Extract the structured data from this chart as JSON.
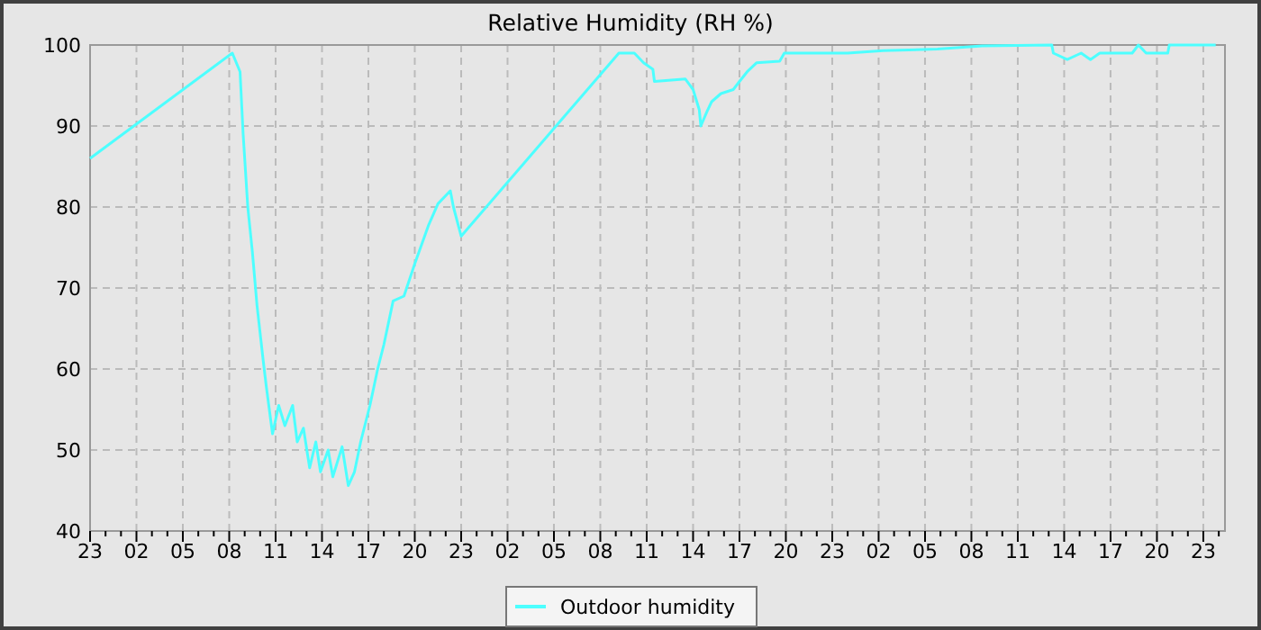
{
  "chart_data": {
    "type": "line",
    "title": "Relative Humidity (RH %)",
    "series": [
      {
        "name": "Outdoor humidity",
        "color": "#4dffff",
        "x": [
          "--01-01T23:00",
          "--01-02T08:12",
          "--01-02T08:42",
          "--01-02T08:54",
          "--01-02T09:12",
          "--01-02T09:30",
          "--01-02T09:48",
          "--01-02T10:12",
          "--01-02T10:24",
          "--01-02T10:48",
          "--01-02T11:12",
          "--01-02T11:36",
          "--01-02T12:06",
          "--01-02T12:24",
          "--01-02T12:48",
          "--01-02T13:12",
          "--01-02T13:36",
          "--01-02T13:54",
          "--01-02T14:24",
          "--01-02T14:42",
          "--01-02T15:18",
          "--01-02T15:42",
          "--01-02T16:06",
          "--01-02T16:30",
          "--01-02T17:06",
          "--01-02T17:36",
          "--01-02T18:00",
          "--01-02T18:36",
          "--01-02T19:18",
          "--01-02T20:00",
          "--01-02T20:54",
          "--01-02T21:30",
          "--01-02T22:18",
          "--01-02T22:30",
          "--01-02T23:00",
          "--01-03T09:12",
          "--01-03T10:12",
          "--01-03T10:48",
          "--01-03T11:24",
          "--01-03T11:30",
          "--01-03T13:30",
          "--01-03T14:00",
          "--01-03T14:24",
          "--01-03T14:30",
          "--01-03T14:54",
          "--01-03T15:12",
          "--01-03T15:48",
          "--01-03T16:36",
          "--01-03T17:00",
          "--01-03T17:30",
          "--01-03T18:06",
          "--01-03T19:36",
          "--01-03T19:54",
          "--01-04T00:00",
          "--01-04T02:18",
          "--01-04T05:48",
          "--01-04T08:42",
          "--01-04T13:12",
          "--01-04T13:18",
          "--01-04T14:12",
          "--01-04T15:06",
          "--01-04T15:42",
          "--01-04T16:18",
          "--01-04T18:24",
          "--01-04T18:48",
          "--01-04T19:18",
          "--01-04T20:42",
          "--01-04T20:48",
          "--01-04T23:48"
        ],
        "values": [
          86,
          99,
          96.7,
          89,
          80,
          74.4,
          67.8,
          61,
          57.8,
          52,
          55.5,
          53,
          55.5,
          51,
          52.7,
          47.8,
          51,
          47.3,
          50,
          46.7,
          50.4,
          45.6,
          47.3,
          51,
          55.5,
          60,
          63,
          68.4,
          69,
          73,
          77.8,
          80.4,
          82,
          80,
          76.4,
          99,
          99,
          97.8,
          97,
          95.5,
          95.8,
          94.5,
          92,
          90,
          91.8,
          93,
          94,
          94.5,
          95.5,
          96.7,
          97.8,
          98,
          99,
          99,
          99.3,
          99.5,
          99.9,
          100,
          99,
          98.2,
          99,
          98.2,
          99,
          99,
          100,
          99,
          99,
          100,
          100
        ]
      }
    ],
    "xlim": [
      "--01-01T23:00",
      "--01-05T00:24"
    ],
    "ylim": [
      40,
      100
    ],
    "yticks": [
      40,
      50,
      60,
      70,
      80,
      90,
      100
    ],
    "xticks": [
      {
        "value": "--01-01T23:00",
        "label": "23"
      },
      {
        "value": "--01-02T00:00",
        "label": null
      },
      {
        "value": "--01-02T01:00",
        "label": null
      },
      {
        "value": "--01-02T02:00",
        "label": "02"
      },
      {
        "value": "--01-02T03:00",
        "label": null
      },
      {
        "value": "--01-02T04:00",
        "label": null
      },
      {
        "value": "--01-02T05:00",
        "label": "05"
      },
      {
        "value": "--01-02T06:00",
        "label": null
      },
      {
        "value": "--01-02T07:00",
        "label": null
      },
      {
        "value": "--01-02T08:00",
        "label": "08"
      },
      {
        "value": "--01-02T09:00",
        "label": null
      },
      {
        "value": "--01-02T10:00",
        "label": null
      },
      {
        "value": "--01-02T11:00",
        "label": "11"
      },
      {
        "value": "--01-02T12:00",
        "label": null
      },
      {
        "value": "--01-02T13:00",
        "label": null
      },
      {
        "value": "--01-02T14:00",
        "label": "14"
      },
      {
        "value": "--01-02T15:00",
        "label": null
      },
      {
        "value": "--01-02T16:00",
        "label": null
      },
      {
        "value": "--01-02T17:00",
        "label": "17"
      },
      {
        "value": "--01-02T18:00",
        "label": null
      },
      {
        "value": "--01-02T19:00",
        "label": null
      },
      {
        "value": "--01-02T20:00",
        "label": "20"
      },
      {
        "value": "--01-02T21:00",
        "label": null
      },
      {
        "value": "--01-02T22:00",
        "label": null
      },
      {
        "value": "--01-02T23:00",
        "label": "23"
      },
      {
        "value": "--01-03T00:00",
        "label": null
      },
      {
        "value": "--01-03T01:00",
        "label": null
      },
      {
        "value": "--01-03T02:00",
        "label": "02"
      },
      {
        "value": "--01-03T03:00",
        "label": null
      },
      {
        "value": "--01-03T04:00",
        "label": null
      },
      {
        "value": "--01-03T05:00",
        "label": "05"
      },
      {
        "value": "--01-03T06:00",
        "label": null
      },
      {
        "value": "--01-03T07:00",
        "label": null
      },
      {
        "value": "--01-03T08:00",
        "label": "08"
      },
      {
        "value": "--01-03T09:00",
        "label": null
      },
      {
        "value": "--01-03T10:00",
        "label": null
      },
      {
        "value": "--01-03T11:00",
        "label": "11"
      },
      {
        "value": "--01-03T12:00",
        "label": null
      },
      {
        "value": "--01-03T13:00",
        "label": null
      },
      {
        "value": "--01-03T14:00",
        "label": "14"
      },
      {
        "value": "--01-03T15:00",
        "label": null
      },
      {
        "value": "--01-03T16:00",
        "label": null
      },
      {
        "value": "--01-03T17:00",
        "label": "17"
      },
      {
        "value": "--01-03T18:00",
        "label": null
      },
      {
        "value": "--01-03T19:00",
        "label": null
      },
      {
        "value": "--01-03T20:00",
        "label": "20"
      },
      {
        "value": "--01-03T21:00",
        "label": null
      },
      {
        "value": "--01-03T22:00",
        "label": null
      },
      {
        "value": "--01-03T23:00",
        "label": "23"
      },
      {
        "value": "--01-04T00:00",
        "label": null
      },
      {
        "value": "--01-04T01:00",
        "label": null
      },
      {
        "value": "--01-04T02:00",
        "label": "02"
      },
      {
        "value": "--01-04T03:00",
        "label": null
      },
      {
        "value": "--01-04T04:00",
        "label": null
      },
      {
        "value": "--01-04T05:00",
        "label": "05"
      },
      {
        "value": "--01-04T06:00",
        "label": null
      },
      {
        "value": "--01-04T07:00",
        "label": null
      },
      {
        "value": "--01-04T08:00",
        "label": "08"
      },
      {
        "value": "--01-04T09:00",
        "label": null
      },
      {
        "value": "--01-04T10:00",
        "label": null
      },
      {
        "value": "--01-04T11:00",
        "label": "11"
      },
      {
        "value": "--01-04T12:00",
        "label": null
      },
      {
        "value": "--01-04T13:00",
        "label": null
      },
      {
        "value": "--01-04T14:00",
        "label": "14"
      },
      {
        "value": "--01-04T15:00",
        "label": null
      },
      {
        "value": "--01-04T16:00",
        "label": null
      },
      {
        "value": "--01-04T17:00",
        "label": "17"
      },
      {
        "value": "--01-04T18:00",
        "label": null
      },
      {
        "value": "--01-04T19:00",
        "label": null
      },
      {
        "value": "--01-04T20:00",
        "label": "20"
      },
      {
        "value": "--01-04T21:00",
        "label": null
      },
      {
        "value": "--01-04T22:00",
        "label": null
      },
      {
        "value": "--01-04T23:00",
        "label": "23"
      },
      {
        "value": "--01-05T00:00",
        "label": null
      }
    ],
    "grid": true,
    "legend": "bottom",
    "marker": "none",
    "line_style": "solid"
  }
}
